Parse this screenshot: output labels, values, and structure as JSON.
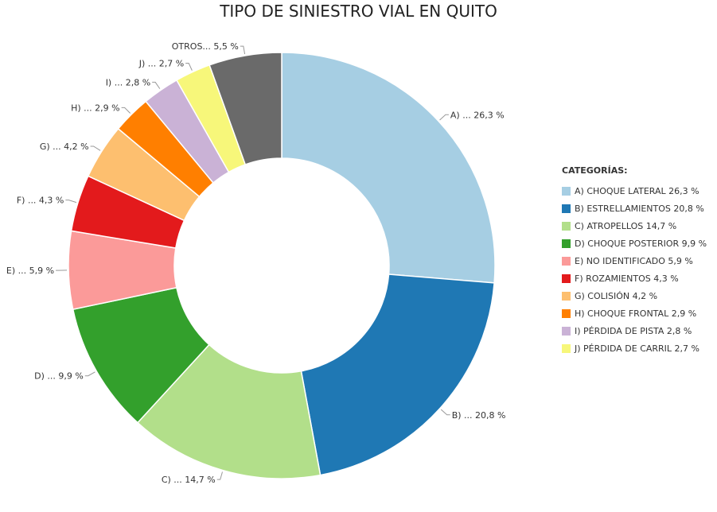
{
  "chart_data": {
    "type": "pie",
    "title": "TIPO DE SINIESTRO VIAL EN QUITO",
    "legend_title": "CATEGORÍAS:",
    "legend_position": "right",
    "donut": true,
    "slices": [
      {
        "label": "A) ... 26,3 %",
        "legend": "A) CHOQUE LATERAL 26,3 %",
        "value": 26.3,
        "color": "#a6cee3",
        "in_legend": true
      },
      {
        "label": "B) ... 20,8 %",
        "legend": "B) ESTRELLAMIENTOS 20,8 %",
        "value": 20.8,
        "color": "#1f78b4",
        "in_legend": true
      },
      {
        "label": "C) ... 14,7 %",
        "legend": "C) ATROPELLOS 14,7 %",
        "value": 14.7,
        "color": "#b2df8a",
        "in_legend": true
      },
      {
        "label": "D) ... 9,9 %",
        "legend": "D) CHOQUE POSTERIOR 9,9 %",
        "value": 9.9,
        "color": "#33a02c",
        "in_legend": true
      },
      {
        "label": "E) ... 5,9 %",
        "legend": "E) NO IDENTIFICADO 5,9 %",
        "value": 5.9,
        "color": "#fb9a99",
        "in_legend": true
      },
      {
        "label": "F) ... 4,3 %",
        "legend": "F) ROZAMIENTOS 4,3 %",
        "value": 4.3,
        "color": "#e31a1c",
        "in_legend": true
      },
      {
        "label": "G) ... 4,2 %",
        "legend": "G) COLISIÓN 4,2 %",
        "value": 4.2,
        "color": "#fdbf6f",
        "in_legend": true
      },
      {
        "label": "H) ... 2,9 %",
        "legend": "H) CHOQUE FRONTAL 2,9 %",
        "value": 2.9,
        "color": "#ff7f00",
        "in_legend": true
      },
      {
        "label": "I) ... 2,8 %",
        "legend": "I) PÉRDIDA DE PISTA 2,8 %",
        "value": 2.8,
        "color": "#cab2d6",
        "in_legend": true
      },
      {
        "label": "J) ... 2,7 %",
        "legend": "J) PÉRDIDA DE CARRIL 2,7 %",
        "value": 2.7,
        "color": "#f7f77a",
        "in_legend": true
      },
      {
        "label": "OTROS... 5,5 %",
        "legend": "",
        "value": 5.5,
        "color": "#6a6a6a",
        "in_legend": false
      }
    ]
  }
}
